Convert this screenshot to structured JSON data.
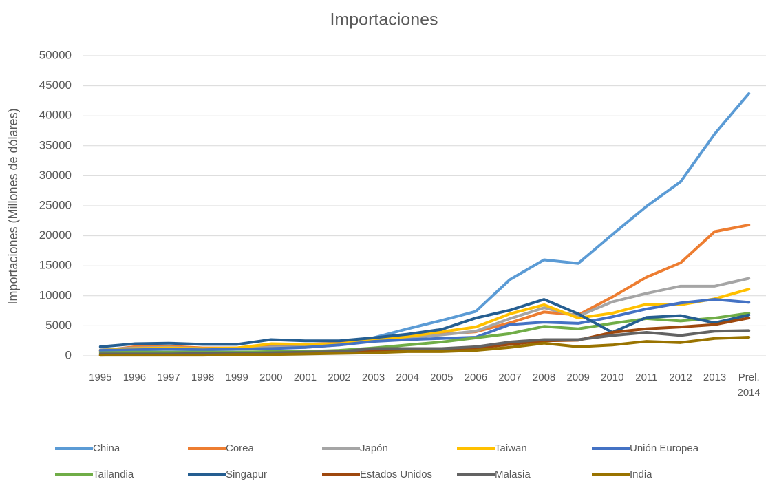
{
  "chart_data": {
    "type": "line",
    "title": "Importaciones",
    "y_label": "Importaciones (Millones de dólares)",
    "categories": [
      "1995",
      "1996",
      "1997",
      "1998",
      "1999",
      "2000",
      "2001",
      "2002",
      "2003",
      "2004",
      "2005",
      "2006",
      "2007",
      "2008",
      "2009",
      "2010",
      "2011",
      "2012",
      "2013",
      "Prel. 2014"
    ],
    "ylim": [
      0,
      50000
    ],
    "yticks": [
      0,
      5000,
      10000,
      15000,
      20000,
      25000,
      30000,
      35000,
      40000,
      45000,
      50000
    ],
    "grid": true,
    "legend": "bottom",
    "series": [
      {
        "name": "China",
        "color": "#5b9bd5",
        "values": [
          800,
          1000,
          1100,
          1100,
          1200,
          1500,
          1700,
          2200,
          3000,
          4500,
          5900,
          7400,
          12700,
          16000,
          15400,
          20200,
          24900,
          29000,
          37000,
          43700
        ]
      },
      {
        "name": "Corea",
        "color": "#ed7d31",
        "values": [
          800,
          1500,
          1600,
          1300,
          1300,
          1900,
          1900,
          2100,
          2600,
          3100,
          3600,
          4000,
          5500,
          7300,
          6800,
          9800,
          13100,
          15500,
          20700,
          21800
        ]
      },
      {
        "name": "Japón",
        "color": "#a5a5a5",
        "values": [
          1000,
          1300,
          1400,
          1200,
          1200,
          1400,
          1400,
          1800,
          2500,
          3000,
          3500,
          4100,
          6200,
          8000,
          6600,
          9000,
          10400,
          11600,
          11600,
          12900
        ]
      },
      {
        "name": "Taiwan",
        "color": "#ffc000",
        "values": [
          900,
          1200,
          1300,
          1200,
          1300,
          2000,
          1900,
          2000,
          2600,
          3200,
          4000,
          4800,
          7000,
          8500,
          6300,
          7100,
          8600,
          8500,
          9500,
          11100
        ]
      },
      {
        "name": "Unión Europea",
        "color": "#4472c4",
        "values": [
          900,
          1000,
          1100,
          1000,
          1100,
          1200,
          1400,
          1800,
          2400,
          2700,
          2900,
          3100,
          5200,
          5600,
          5400,
          6500,
          7800,
          8800,
          9400,
          8900
        ]
      },
      {
        "name": "Tailandia",
        "color": "#70ad47",
        "values": [
          500,
          600,
          600,
          600,
          600,
          700,
          700,
          900,
          1300,
          1800,
          2300,
          3000,
          3700,
          4900,
          4500,
          5400,
          6200,
          5800,
          6300,
          7100
        ]
      },
      {
        "name": "Singapur",
        "color": "#255e91",
        "values": [
          1500,
          2000,
          2100,
          1900,
          1900,
          2700,
          2500,
          2500,
          3000,
          3600,
          4400,
          6300,
          7600,
          9400,
          7000,
          3900,
          6400,
          6700,
          5500,
          6800
        ]
      },
      {
        "name": "Estados Unidos",
        "color": "#9e480e",
        "values": [
          100,
          200,
          200,
          300,
          300,
          400,
          500,
          600,
          800,
          1000,
          1100,
          1300,
          1900,
          2500,
          2600,
          3900,
          4500,
          4800,
          5200,
          6300
        ]
      },
      {
        "name": "Malasia",
        "color": "#636363",
        "values": [
          300,
          300,
          300,
          400,
          400,
          500,
          600,
          700,
          1200,
          1200,
          1200,
          1500,
          2300,
          2700,
          2700,
          3400,
          3900,
          3400,
          4100,
          4200
        ]
      },
      {
        "name": "India",
        "color": "#997300",
        "values": [
          100,
          100,
          100,
          100,
          200,
          200,
          300,
          400,
          500,
          700,
          700,
          900,
          1400,
          2100,
          1500,
          1800,
          2400,
          2200,
          2900,
          3100
        ]
      }
    ]
  }
}
